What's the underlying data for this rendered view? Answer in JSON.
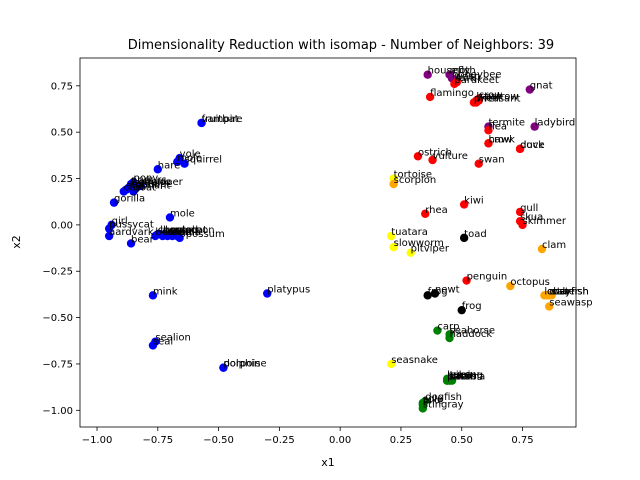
{
  "chart_data": {
    "type": "scatter",
    "title": "Dimensionality Reduction with isomap - Number of Neighbors: 39",
    "xlabel": "x1",
    "ylabel": "x2",
    "xlim": [
      -1.07,
      0.97
    ],
    "ylim": [
      -1.09,
      0.9
    ],
    "xticks": [
      -1.0,
      -0.75,
      -0.5,
      -0.25,
      0.0,
      0.25,
      0.5,
      0.75
    ],
    "yticks": [
      -1.0,
      -0.75,
      -0.5,
      -0.25,
      0.0,
      0.25,
      0.5,
      0.75
    ],
    "xtick_labels": [
      "−1.00",
      "−0.75",
      "−0.50",
      "−0.25",
      "0.00",
      "0.25",
      "0.50",
      "0.75"
    ],
    "ytick_labels": [
      "−1.00",
      "−0.75",
      "−0.50",
      "−0.25",
      "0.00",
      "0.25",
      "0.50",
      "0.75"
    ],
    "colors": {
      "blue": "#0000ff",
      "red": "#ff0000",
      "purple": "#800080",
      "orange": "#ffa500",
      "yellow": "#ffff00",
      "black": "#000000",
      "green": "#008000"
    },
    "points": [
      {
        "label": "fruitbat",
        "x": -0.57,
        "y": 0.55,
        "color": "blue"
      },
      {
        "label": "vampire",
        "x": -0.57,
        "y": 0.55,
        "color": "blue"
      },
      {
        "label": "squirrel",
        "x": -0.64,
        "y": 0.33,
        "color": "blue"
      },
      {
        "label": "mole",
        "x": -0.67,
        "y": 0.34,
        "color": "blue"
      },
      {
        "label": "vole",
        "x": -0.66,
        "y": 0.36,
        "color": "blue"
      },
      {
        "label": "hare",
        "x": -0.75,
        "y": 0.3,
        "color": "blue"
      },
      {
        "label": "pony",
        "x": -0.85,
        "y": 0.23,
        "color": "blue"
      },
      {
        "label": "antelope",
        "x": -0.87,
        "y": 0.2,
        "color": "blue"
      },
      {
        "label": "buffalo",
        "x": -0.86,
        "y": 0.21,
        "color": "blue"
      },
      {
        "label": "deer",
        "x": -0.84,
        "y": 0.2,
        "color": "blue"
      },
      {
        "label": "elephant",
        "x": -0.88,
        "y": 0.19,
        "color": "blue"
      },
      {
        "label": "giraffe",
        "x": -0.83,
        "y": 0.21,
        "color": "blue"
      },
      {
        "label": "oryx",
        "x": -0.86,
        "y": 0.22,
        "color": "blue"
      },
      {
        "label": "reindeer",
        "x": -0.82,
        "y": 0.21,
        "color": "blue"
      },
      {
        "label": "calf",
        "x": -0.89,
        "y": 0.18,
        "color": "blue"
      },
      {
        "label": "goat",
        "x": -0.85,
        "y": 0.18,
        "color": "blue"
      },
      {
        "label": "gorilla",
        "x": -0.93,
        "y": 0.12,
        "color": "blue"
      },
      {
        "label": "mole",
        "x": -0.7,
        "y": 0.04,
        "color": "blue"
      },
      {
        "label": "girl",
        "x": -0.94,
        "y": 0.0,
        "color": "blue"
      },
      {
        "label": "pussycat",
        "x": -0.95,
        "y": -0.02,
        "color": "blue"
      },
      {
        "label": "aardvark",
        "x": -0.95,
        "y": -0.06,
        "color": "blue"
      },
      {
        "label": "bear",
        "x": -0.86,
        "y": -0.1,
        "color": "blue"
      },
      {
        "label": "boar",
        "x": -0.76,
        "y": -0.06,
        "color": "blue"
      },
      {
        "label": "cheetah",
        "x": -0.75,
        "y": -0.05,
        "color": "blue"
      },
      {
        "label": "leopard",
        "x": -0.74,
        "y": -0.05,
        "color": "blue"
      },
      {
        "label": "lion",
        "x": -0.73,
        "y": -0.06,
        "color": "blue"
      },
      {
        "label": "lynx",
        "x": -0.72,
        "y": -0.05,
        "color": "blue"
      },
      {
        "label": "mink",
        "x": -0.71,
        "y": -0.06,
        "color": "blue"
      },
      {
        "label": "polecat",
        "x": -0.7,
        "y": -0.05,
        "color": "blue"
      },
      {
        "label": "puma",
        "x": -0.69,
        "y": -0.06,
        "color": "blue"
      },
      {
        "label": "raccoon",
        "x": -0.68,
        "y": -0.05,
        "color": "blue"
      },
      {
        "label": "wolf",
        "x": -0.67,
        "y": -0.06,
        "color": "blue"
      },
      {
        "label": "opossum",
        "x": -0.66,
        "y": -0.07,
        "color": "blue"
      },
      {
        "label": "mink",
        "x": -0.77,
        "y": -0.38,
        "color": "blue"
      },
      {
        "label": "platypus",
        "x": -0.3,
        "y": -0.37,
        "color": "blue"
      },
      {
        "label": "sealion",
        "x": -0.76,
        "y": -0.63,
        "color": "blue"
      },
      {
        "label": "seal",
        "x": -0.77,
        "y": -0.65,
        "color": "blue"
      },
      {
        "label": "dolphin",
        "x": -0.48,
        "y": -0.77,
        "color": "blue"
      },
      {
        "label": "porpoise",
        "x": -0.48,
        "y": -0.77,
        "color": "blue"
      },
      {
        "label": "housefly",
        "x": 0.36,
        "y": 0.81,
        "color": "purple"
      },
      {
        "label": "moth",
        "x": 0.45,
        "y": 0.81,
        "color": "purple"
      },
      {
        "label": "honeybee",
        "x": 0.46,
        "y": 0.79,
        "color": "purple"
      },
      {
        "label": "wasp",
        "x": 0.47,
        "y": 0.78,
        "color": "purple"
      },
      {
        "label": "gnat",
        "x": 0.78,
        "y": 0.73,
        "color": "purple"
      },
      {
        "label": "termite",
        "x": 0.61,
        "y": 0.53,
        "color": "purple"
      },
      {
        "label": "ladybird",
        "x": 0.8,
        "y": 0.53,
        "color": "purple"
      },
      {
        "label": "lark",
        "x": 0.48,
        "y": 0.77,
        "color": "red"
      },
      {
        "label": "parakeet",
        "x": 0.47,
        "y": 0.76,
        "color": "red"
      },
      {
        "label": "flamingo",
        "x": 0.37,
        "y": 0.69,
        "color": "red"
      },
      {
        "label": "crow",
        "x": 0.57,
        "y": 0.68,
        "color": "red"
      },
      {
        "label": "hawk",
        "x": 0.56,
        "y": 0.67,
        "color": "red"
      },
      {
        "label": "pheasant",
        "x": 0.55,
        "y": 0.66,
        "color": "red"
      },
      {
        "label": "sparrow",
        "x": 0.57,
        "y": 0.67,
        "color": "red"
      },
      {
        "label": "wren",
        "x": 0.56,
        "y": 0.66,
        "color": "red"
      },
      {
        "label": "flea",
        "x": 0.61,
        "y": 0.51,
        "color": "red"
      },
      {
        "label": "hawk",
        "x": 0.61,
        "y": 0.44,
        "color": "red"
      },
      {
        "label": "crow",
        "x": 0.61,
        "y": 0.44,
        "color": "red"
      },
      {
        "label": "dove",
        "x": 0.74,
        "y": 0.41,
        "color": "red"
      },
      {
        "label": "duck",
        "x": 0.74,
        "y": 0.41,
        "color": "red"
      },
      {
        "label": "ostrich",
        "x": 0.32,
        "y": 0.37,
        "color": "red"
      },
      {
        "label": "vulture",
        "x": 0.38,
        "y": 0.35,
        "color": "red"
      },
      {
        "label": "swan",
        "x": 0.57,
        "y": 0.33,
        "color": "red"
      },
      {
        "label": "kiwi",
        "x": 0.51,
        "y": 0.11,
        "color": "red"
      },
      {
        "label": "rhea",
        "x": 0.35,
        "y": 0.06,
        "color": "red"
      },
      {
        "label": "gull",
        "x": 0.74,
        "y": 0.07,
        "color": "red"
      },
      {
        "label": "skua",
        "x": 0.74,
        "y": 0.02,
        "color": "red"
      },
      {
        "label": "skimmer",
        "x": 0.75,
        "y": 0.0,
        "color": "red"
      },
      {
        "label": "penguin",
        "x": 0.52,
        "y": -0.3,
        "color": "red"
      },
      {
        "label": "tortoise",
        "x": 0.22,
        "y": 0.25,
        "color": "yellow"
      },
      {
        "label": "scorpion",
        "x": 0.22,
        "y": 0.22,
        "color": "orange"
      },
      {
        "label": "clam",
        "x": 0.83,
        "y": -0.13,
        "color": "orange"
      },
      {
        "label": "octopus",
        "x": 0.7,
        "y": -0.33,
        "color": "orange"
      },
      {
        "label": "lobster",
        "x": 0.84,
        "y": -0.38,
        "color": "orange"
      },
      {
        "label": "crab",
        "x": 0.85,
        "y": -0.38,
        "color": "orange"
      },
      {
        "label": "crayfish",
        "x": 0.86,
        "y": -0.38,
        "color": "orange"
      },
      {
        "label": "starfish",
        "x": 0.87,
        "y": -0.38,
        "color": "orange"
      },
      {
        "label": "seawasp",
        "x": 0.86,
        "y": -0.44,
        "color": "orange"
      },
      {
        "label": "tuatara",
        "x": 0.21,
        "y": -0.06,
        "color": "yellow"
      },
      {
        "label": "slowworm",
        "x": 0.22,
        "y": -0.12,
        "color": "yellow"
      },
      {
        "label": "pitviper",
        "x": 0.29,
        "y": -0.15,
        "color": "yellow"
      },
      {
        "label": "seasnake",
        "x": 0.21,
        "y": -0.75,
        "color": "yellow"
      },
      {
        "label": "toad",
        "x": 0.51,
        "y": -0.07,
        "color": "black"
      },
      {
        "label": "frog",
        "x": 0.36,
        "y": -0.38,
        "color": "black"
      },
      {
        "label": "newt",
        "x": 0.39,
        "y": -0.37,
        "color": "black"
      },
      {
        "label": "frog",
        "x": 0.5,
        "y": -0.46,
        "color": "black"
      },
      {
        "label": "carp",
        "x": 0.4,
        "y": -0.57,
        "color": "green"
      },
      {
        "label": "seahorse",
        "x": 0.45,
        "y": -0.59,
        "color": "green"
      },
      {
        "label": "haddock",
        "x": 0.45,
        "y": -0.61,
        "color": "green"
      },
      {
        "label": "bass",
        "x": 0.44,
        "y": -0.84,
        "color": "green"
      },
      {
        "label": "catfish",
        "x": 0.45,
        "y": -0.84,
        "color": "green"
      },
      {
        "label": "chub",
        "x": 0.46,
        "y": -0.84,
        "color": "green"
      },
      {
        "label": "herring",
        "x": 0.44,
        "y": -0.83,
        "color": "green"
      },
      {
        "label": "pike",
        "x": 0.45,
        "y": -0.83,
        "color": "green"
      },
      {
        "label": "piranha",
        "x": 0.44,
        "y": -0.84,
        "color": "green"
      },
      {
        "label": "tuna",
        "x": 0.45,
        "y": -0.83,
        "color": "green"
      },
      {
        "label": "dogfish",
        "x": 0.35,
        "y": -0.95,
        "color": "green"
      },
      {
        "label": "sole",
        "x": 0.34,
        "y": -0.96,
        "color": "green"
      },
      {
        "label": "pike",
        "x": 0.34,
        "y": -0.97,
        "color": "green"
      },
      {
        "label": "stingray",
        "x": 0.34,
        "y": -0.99,
        "color": "green"
      }
    ]
  }
}
